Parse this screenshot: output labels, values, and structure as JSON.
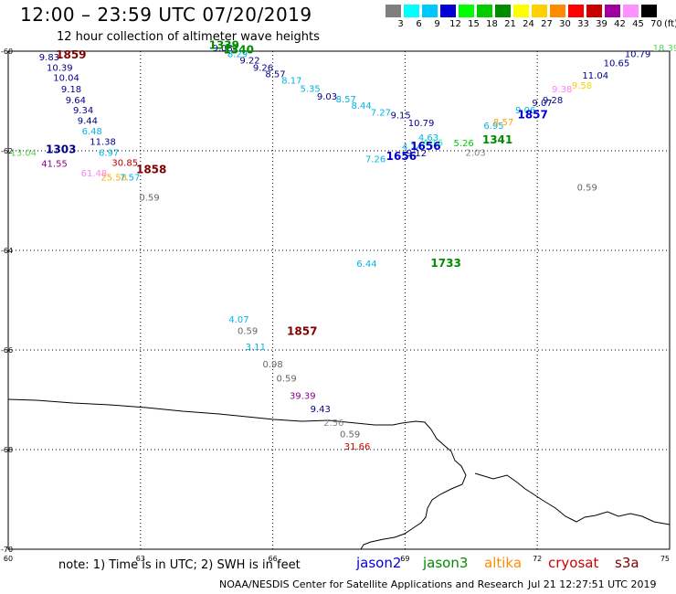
{
  "header": {
    "title": "12:00 – 23:59 UTC 07/20/2019",
    "subtitle": "12 hour collection of altimeter wave heights"
  },
  "scale": {
    "unit": "(ft)",
    "bins": [
      {
        "label": "3",
        "color": "#7f7f7f"
      },
      {
        "label": "6",
        "color": "#00ffff"
      },
      {
        "label": "9",
        "color": "#00c8ff"
      },
      {
        "label": "12",
        "color": "#0000d0"
      },
      {
        "label": "15",
        "color": "#00ff00"
      },
      {
        "label": "18",
        "color": "#00cc00"
      },
      {
        "label": "21",
        "color": "#008c00"
      },
      {
        "label": "24",
        "color": "#ffff00"
      },
      {
        "label": "27",
        "color": "#ffd000"
      },
      {
        "label": "30",
        "color": "#ff8c00"
      },
      {
        "label": "33",
        "color": "#ff0000"
      },
      {
        "label": "39",
        "color": "#c80000"
      },
      {
        "label": "42",
        "color": "#a000a0"
      },
      {
        "label": "45",
        "color": "#ff90ff"
      },
      {
        "label": "70",
        "color": "#000000"
      }
    ]
  },
  "axes": {
    "lat_labels": [
      "-60",
      "-62",
      "-64",
      "-66",
      "-68",
      "-70"
    ],
    "lon_labels": [
      "60",
      "63",
      "66",
      "69",
      "72",
      "75"
    ]
  },
  "map_labels": [
    {
      "t": "9.83",
      "c": "#00008b",
      "lon": 60.7,
      "lat": -60.18
    },
    {
      "t": "10.39",
      "c": "#00008b",
      "lon": 60.87,
      "lat": -60.39
    },
    {
      "t": "10.04",
      "c": "#00008b",
      "lon": 61.02,
      "lat": -60.6
    },
    {
      "t": "9.18",
      "c": "#00008b",
      "lon": 61.2,
      "lat": -60.83
    },
    {
      "t": "9.64",
      "c": "#00008b",
      "lon": 61.3,
      "lat": -61.05
    },
    {
      "t": "9.34",
      "c": "#00008b",
      "lon": 61.47,
      "lat": -61.25
    },
    {
      "t": "9.44",
      "c": "#00008b",
      "lon": 61.57,
      "lat": -61.46
    },
    {
      "t": "6.48",
      "c": "#00b4e6",
      "lon": 61.67,
      "lat": -61.67
    },
    {
      "t": "11.38",
      "c": "#00008b",
      "lon": 61.85,
      "lat": -61.88
    },
    {
      "t": "6.97",
      "c": "#00b4e6",
      "lon": 62.05,
      "lat": -62.1
    },
    {
      "t": "13.04",
      "c": "#5ad15a",
      "lon": 60.05,
      "lat": -62.1
    },
    {
      "t": "41.55",
      "c": "#8b008b",
      "lon": 60.75,
      "lat": -62.32
    },
    {
      "t": "30.85",
      "c": "#b00000",
      "lon": 62.35,
      "lat": -62.3
    },
    {
      "t": "61.48",
      "c": "#ff80ff",
      "lon": 61.65,
      "lat": -62.51
    },
    {
      "t": "25.58",
      "c": "#ffb000",
      "lon": 62.1,
      "lat": -62.6
    },
    {
      "t": "7.57",
      "c": "#00b4e6",
      "lon": 62.53,
      "lat": -62.6
    },
    {
      "t": "0.59",
      "c": "#666666",
      "lon": 62.97,
      "lat": -63.0
    },
    {
      "t": "9.08",
      "c": "#00008b",
      "lon": 64.63,
      "lat": -60.0
    },
    {
      "t": "8.29",
      "c": "#00b4e6",
      "lon": 64.97,
      "lat": -60.12
    },
    {
      "t": "9.22",
      "c": "#00008b",
      "lon": 65.25,
      "lat": -60.25
    },
    {
      "t": "9.26",
      "c": "#00008b",
      "lon": 65.55,
      "lat": -60.39
    },
    {
      "t": "8.57",
      "c": "#00008b",
      "lon": 65.83,
      "lat": -60.52
    },
    {
      "t": "8.17",
      "c": "#00b4e6",
      "lon": 66.2,
      "lat": -60.65
    },
    {
      "t": "5.35",
      "c": "#00b4e6",
      "lon": 66.62,
      "lat": -60.82
    },
    {
      "t": "9.03",
      "c": "#00008b",
      "lon": 67.0,
      "lat": -60.97
    },
    {
      "t": "8.57",
      "c": "#00b4e6",
      "lon": 67.43,
      "lat": -61.03
    },
    {
      "t": "8.44",
      "c": "#00b4e6",
      "lon": 67.78,
      "lat": -61.16
    },
    {
      "t": "7.27",
      "c": "#00b4e6",
      "lon": 68.22,
      "lat": -61.29
    },
    {
      "t": "9.15",
      "c": "#00008b",
      "lon": 68.67,
      "lat": -61.35
    },
    {
      "t": "10.79",
      "c": "#00008b",
      "lon": 69.07,
      "lat": -61.5
    },
    {
      "t": "4.63",
      "c": "#00b4e6",
      "lon": 69.3,
      "lat": -61.8
    },
    {
      "t": "4.24",
      "c": "#00b4e6",
      "lon": 68.93,
      "lat": -61.98
    },
    {
      "t": "9.12",
      "c": "#00008b",
      "lon": 69.03,
      "lat": -62.11
    },
    {
      "t": "7.26",
      "c": "#00b4e6",
      "lon": 68.1,
      "lat": -62.23
    },
    {
      "t": "4.16",
      "c": "#00ff7f",
      "lon": 69.4,
      "lat": -61.9
    },
    {
      "t": "5.26",
      "c": "#00cc00",
      "lon": 70.1,
      "lat": -61.91
    },
    {
      "t": "2.03",
      "c": "#888888",
      "lon": 70.37,
      "lat": -62.1
    },
    {
      "t": "6.95",
      "c": "#00b4e6",
      "lon": 70.78,
      "lat": -61.56
    },
    {
      "t": "8.57",
      "c": "#ffa000",
      "lon": 71.0,
      "lat": -61.49
    },
    {
      "t": "9.06",
      "c": "#00b4e6",
      "lon": 71.5,
      "lat": -61.25
    },
    {
      "t": "9.07",
      "c": "#00008b",
      "lon": 71.88,
      "lat": -61.1
    },
    {
      "t": "9.28",
      "c": "#00008b",
      "lon": 72.12,
      "lat": -61.05
    },
    {
      "t": "9.38",
      "c": "#ff80ff",
      "lon": 72.33,
      "lat": -60.83
    },
    {
      "t": "9.58",
      "c": "#ffd000",
      "lon": 72.78,
      "lat": -60.75
    },
    {
      "t": "11.04",
      "c": "#00008b",
      "lon": 73.02,
      "lat": -60.55
    },
    {
      "t": "10.65",
      "c": "#00008b",
      "lon": 73.5,
      "lat": -60.3
    },
    {
      "t": "10.79",
      "c": "#00008b",
      "lon": 73.98,
      "lat": -60.12
    },
    {
      "t": "18.39",
      "c": "#5ad15a",
      "lon": 74.62,
      "lat": -60.0
    },
    {
      "t": "0.59",
      "c": "#666666",
      "lon": 72.9,
      "lat": -62.8
    },
    {
      "t": "6.44",
      "c": "#00b4e6",
      "lon": 67.9,
      "lat": -64.33
    },
    {
      "t": "4.07",
      "c": "#00b4e6",
      "lon": 65.0,
      "lat": -65.45
    },
    {
      "t": "0.59",
      "c": "#666666",
      "lon": 65.2,
      "lat": -65.68
    },
    {
      "t": "3.11",
      "c": "#00b4e6",
      "lon": 65.38,
      "lat": -66.0
    },
    {
      "t": "0.98",
      "c": "#666666",
      "lon": 65.77,
      "lat": -66.35
    },
    {
      "t": "0.59",
      "c": "#666666",
      "lon": 66.08,
      "lat": -66.63
    },
    {
      "t": "39.39",
      "c": "#8b008b",
      "lon": 66.38,
      "lat": -66.98
    },
    {
      "t": "9.43",
      "c": "#00008b",
      "lon": 66.85,
      "lat": -67.25
    },
    {
      "t": "2.56",
      "c": "#888888",
      "lon": 67.15,
      "lat": -67.52
    },
    {
      "t": "0.59",
      "c": "#666666",
      "lon": 67.52,
      "lat": -67.75
    },
    {
      "t": "31.66",
      "c": "#c80000",
      "lon": 67.62,
      "lat": -68.0
    }
  ],
  "time_labels": [
    {
      "t": "1859",
      "c": "#800000",
      "lon": 61.08,
      "lat": -60.15
    },
    {
      "t": "1303",
      "c": "#00008b",
      "lon": 60.85,
      "lat": -62.05
    },
    {
      "t": "1858",
      "c": "#800000",
      "lon": 62.9,
      "lat": -62.45
    },
    {
      "t": "1339",
      "c": "#008c00",
      "lon": 64.55,
      "lat": -59.95
    },
    {
      "t": "1340",
      "c": "#008c00",
      "lon": 64.88,
      "lat": -60.05
    },
    {
      "t": "1656",
      "c": "#0000d0",
      "lon": 69.12,
      "lat": -61.98
    },
    {
      "t": "1656",
      "c": "#0000d0",
      "lon": 68.57,
      "lat": -62.18
    },
    {
      "t": "1341",
      "c": "#008c00",
      "lon": 70.75,
      "lat": -61.85
    },
    {
      "t": "1857",
      "c": "#0000d0",
      "lon": 71.55,
      "lat": -61.35
    },
    {
      "t": "1733",
      "c": "#008c00",
      "lon": 69.58,
      "lat": -64.33
    },
    {
      "t": "1857",
      "c": "#800000",
      "lon": 66.32,
      "lat": -65.7
    }
  ],
  "footer": {
    "note": "note: 1) Time is in UTC; 2) SWH is in feet",
    "satellites": [
      {
        "name": "jason2",
        "color": "#0000e0"
      },
      {
        "name": "jason3",
        "color": "#008c00"
      },
      {
        "name": "altika",
        "color": "#ff8c00"
      },
      {
        "name": "cryosat",
        "color": "#d00000"
      },
      {
        "name": "s3a",
        "color": "#800000"
      }
    ],
    "credit": "NOAA/NESDIS Center for Satellite Applications and Research",
    "timestamp": "Jul 21 12:27:51 UTC 2019"
  }
}
